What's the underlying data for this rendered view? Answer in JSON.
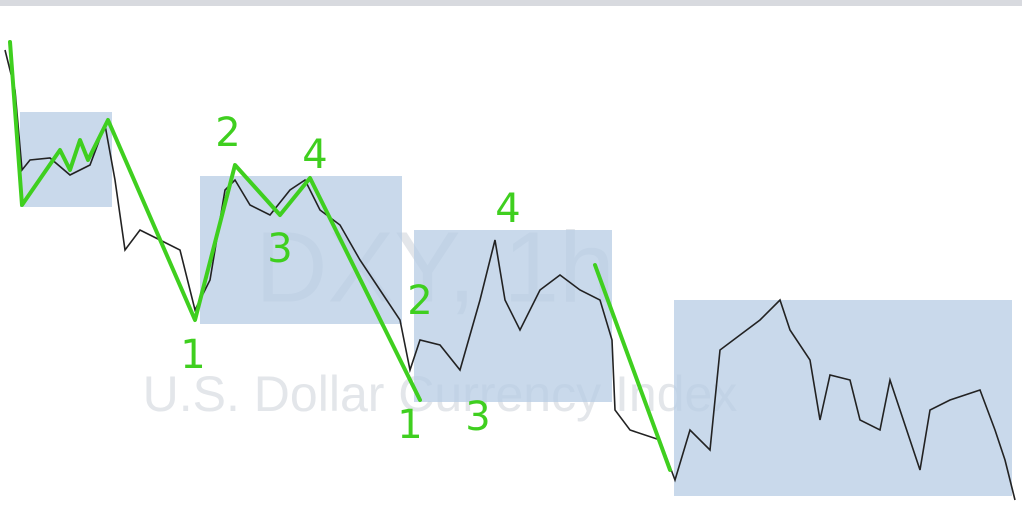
{
  "watermark": {
    "symbol": "DXY, 1h",
    "description": "U.S. Dollar Currency Index"
  },
  "annotations": [
    "1",
    "2",
    "3",
    "4",
    "2",
    "1",
    "3",
    "4"
  ]
}
